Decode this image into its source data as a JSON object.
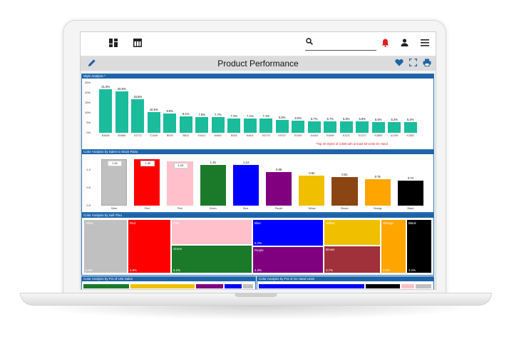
{
  "app": {
    "title": "Product Performance",
    "search": {
      "placeholder": ""
    }
  },
  "icons": {
    "dashboard": "dashboard-icon",
    "table": "table-icon",
    "search": "search-icon",
    "alert": "alert-bell-icon",
    "user": "user-icon",
    "menu": "menu-icon",
    "edit": "pencil-icon",
    "favorite": "heart-icon",
    "fullscreen": "fullscreen-icon",
    "print": "print-icon"
  },
  "colors": {
    "accent": "#1f64a8",
    "teal": "#1abc9c",
    "alert": "#e02020",
    "favorite": "#1f64a8"
  },
  "style_analysis": {
    "header": "Style Analysis *",
    "footnote": "*Top 20 Styles of 2,596 with at least 50 Units On Hand",
    "y_ticks": [
      "25%",
      "20%",
      "15%",
      "10%",
      "5%",
      "0%"
    ]
  },
  "ratio_panel": {
    "header": "Color Analysis by Sales to Stock Ratio",
    "y_ticks": [
      "1.0",
      "0.5",
      "0.0"
    ]
  },
  "sellthru_panel": {
    "header": "Color Analysis by Sell-Thru"
  },
  "unit_sales_panel": {
    "header": "Color Analysis by Pct of Unit Sales"
  },
  "onhand_panel": {
    "header": "Color Analysis by Pct of On Hand Units"
  },
  "chart_data": [
    {
      "type": "bar",
      "categories": [
        "B4826",
        "B4968",
        "K2772",
        "C1049",
        "B678",
        "B813",
        "K4412",
        "A4691",
        "B518",
        "K4611",
        "K4779",
        "K9747",
        "E1591",
        "A4404",
        "K4599",
        "K1121",
        "K1272",
        "K2800",
        "A1290",
        "K1502"
      ],
      "values": [
        21.9,
        20.8,
        16.8,
        10.5,
        9.6,
        8.1,
        7.8,
        7.7,
        7.2,
        7.1,
        7.1,
        6.6,
        6.0,
        5.7,
        5.7,
        5.6,
        5.6,
        5.5,
        5.2,
        5.2
      ],
      "labels": [
        "21.9%",
        "20.8%",
        "16.8%",
        "10.5%",
        "9.6%",
        "8.1%",
        "7.8%",
        "7.7%",
        "7.2%",
        "7.1%",
        "7.1%",
        "6.6%",
        "6.0%",
        "5.7%",
        "5.7%",
        "5.6%",
        "5.6%",
        "5.5%",
        "5.2%",
        "5.2%"
      ],
      "ylim": [
        0,
        25
      ],
      "color": "#1abc9c"
    },
    {
      "type": "bar",
      "categories": [
        "Silver",
        "Red",
        "Pink",
        "Green",
        "Blue",
        "Purple",
        "Yellow",
        "Brown",
        "Orange",
        "Black"
      ],
      "values": [
        1.31,
        1.3,
        1.25,
        1.15,
        1.14,
        0.95,
        0.84,
        0.81,
        0.75,
        0.7
      ],
      "labels": [
        "1.31",
        "1.30",
        "1.25",
        "1.15",
        "1.14",
        "0.95",
        "0.84",
        "0.81",
        "0.75",
        "0.70"
      ],
      "colors": [
        "#c0c0c0",
        "#ff0000",
        "#ffc0cb",
        "#1a7a2a",
        "#0000ff",
        "#800080",
        "#f0c000",
        "#8b4513",
        "#ffa500",
        "#000000"
      ],
      "ylim": [
        0,
        1.4
      ]
    },
    {
      "type": "heatmap",
      "tiles": [
        {
          "name": "Silver",
          "value": "5.9%",
          "color": "#c0c0c0",
          "text": "#ffffff"
        },
        {
          "name": "Red",
          "value": "5.8%",
          "color": "#ff0000",
          "text": "#ffffff"
        },
        {
          "name": "Pink",
          "value": "",
          "color": "#ffc0cb",
          "text": "#ffffff"
        },
        {
          "name": "Green",
          "value": "5.2%",
          "color": "#1a7a2a",
          "text": "#ffffff"
        },
        {
          "name": "Blue",
          "value": "5.2%",
          "color": "#0000ff",
          "text": "#ffffff"
        },
        {
          "name": "Purple",
          "value": "4.3%",
          "color": "#800080",
          "text": "#ffffff"
        },
        {
          "name": "Yellow",
          "value": "",
          "color": "#f0c000",
          "text": "#ffffff"
        },
        {
          "name": "Brown",
          "value": "3.7%",
          "color": "#a0303a",
          "text": "#ffffff"
        },
        {
          "name": "Orange",
          "value": "3.6%",
          "color": "#ffa500",
          "text": "#ffffff"
        },
        {
          "name": "Black",
          "value": "3.2%",
          "color": "#000000",
          "text": "#ffffff"
        }
      ]
    }
  ]
}
